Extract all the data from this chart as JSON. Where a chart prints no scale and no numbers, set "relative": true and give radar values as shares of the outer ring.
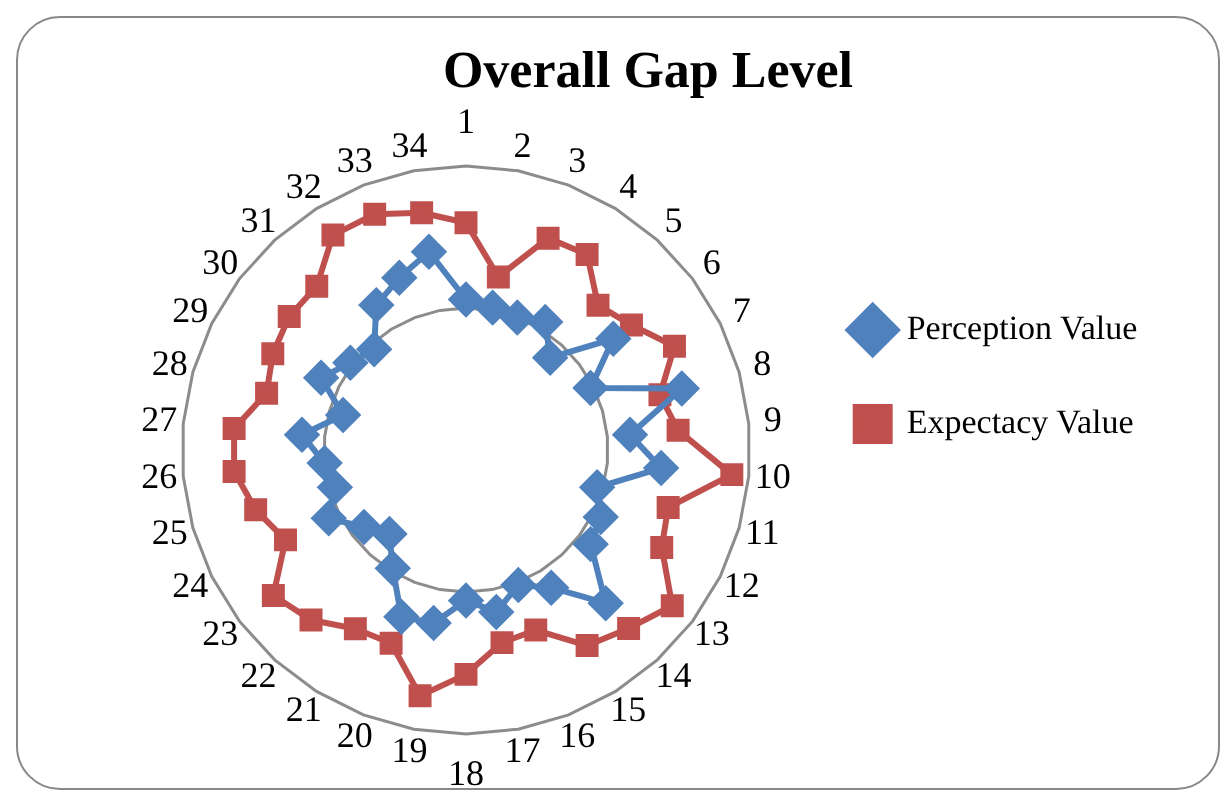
{
  "chart_data": {
    "type": "radar",
    "title": "Overall Gap Level",
    "relative": true,
    "grid": true,
    "legend": "right",
    "categories": [
      "1",
      "2",
      "3",
      "4",
      "5",
      "6",
      "7",
      "8",
      "9",
      "10",
      "11",
      "12",
      "13",
      "14",
      "15",
      "16",
      "17",
      "18",
      "19",
      "20",
      "21",
      "22",
      "23",
      "24",
      "25",
      "26",
      "27",
      "28",
      "29",
      "30",
      "31",
      "32",
      "33",
      "34"
    ],
    "series": [
      {
        "name": "Perception Value",
        "color": "#4f81bd",
        "marker": "diamond",
        "values": [
          0.53,
          0.51,
          0.5,
          0.53,
          0.44,
          0.65,
          0.49,
          0.79,
          0.58,
          0.69,
          0.48,
          0.53,
          0.55,
          0.73,
          0.57,
          0.51,
          0.58,
          0.53,
          0.62,
          0.63,
          0.49,
          0.4,
          0.45,
          0.54,
          0.48,
          0.5,
          0.58,
          0.45,
          0.57,
          0.51,
          0.48,
          0.6,
          0.65,
          0.71
        ]
      },
      {
        "name": "Expectacy Value",
        "color": "#c0504d",
        "marker": "square",
        "values": [
          0.8,
          0.62,
          0.8,
          0.81,
          0.69,
          0.73,
          0.82,
          0.71,
          0.75,
          0.94,
          0.74,
          0.77,
          0.91,
          0.85,
          0.81,
          0.68,
          0.69,
          0.79,
          0.88,
          0.73,
          0.74,
          0.81,
          0.85,
          0.71,
          0.77,
          0.82,
          0.82,
          0.73,
          0.76,
          0.78,
          0.78,
          0.89,
          0.89,
          0.85
        ]
      }
    ]
  }
}
